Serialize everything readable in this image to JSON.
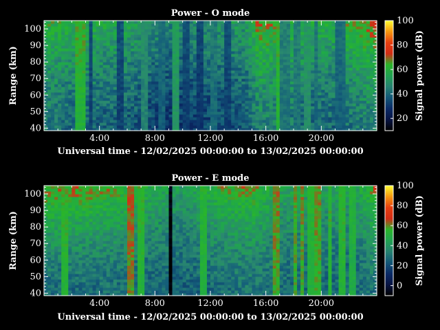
{
  "chart_data": [
    {
      "type": "heatmap",
      "title": "Power - O mode",
      "xlabel": "Universal time - 12/02/2025 00:00:00 to 13/02/2025 00:00:00",
      "ylabel": "Range (km)",
      "x_unit": "hours UT",
      "xlim": [
        0,
        24
      ],
      "ylim": [
        38.5,
        105
      ],
      "x_ticks": [
        "4:00",
        "8:00",
        "12:00",
        "16:00",
        "20:00"
      ],
      "x_tick_values": [
        4,
        8,
        12,
        16,
        20
      ],
      "y_ticks": [
        "40",
        "50",
        "60",
        "70",
        "80",
        "90",
        "100"
      ],
      "y_tick_values": [
        40,
        50,
        60,
        70,
        80,
        90,
        100
      ],
      "colorbar": {
        "label": "Signal power (dB)",
        "range": [
          10,
          100
        ],
        "ticks": [
          "20",
          "40",
          "60",
          "80",
          "100"
        ],
        "tick_values": [
          20,
          40,
          60,
          80,
          100
        ]
      },
      "profile": [
        {
          "t": 0,
          "bottom": 44,
          "top": 60
        },
        {
          "t": 2,
          "bottom": 40,
          "top": 60
        },
        {
          "t": 6,
          "bottom": 38,
          "top": 55
        },
        {
          "t": 9,
          "bottom": 30,
          "top": 48
        },
        {
          "t": 12,
          "bottom": 33,
          "top": 50
        },
        {
          "t": 14.5,
          "bottom": 36,
          "top": 52
        },
        {
          "t": 15.5,
          "bottom": 46,
          "top": 66
        },
        {
          "t": 17,
          "bottom": 45,
          "top": 62
        },
        {
          "t": 19,
          "bottom": 40,
          "top": 58
        },
        {
          "t": 21,
          "bottom": 40,
          "top": 58
        },
        {
          "t": 24,
          "bottom": 46,
          "top": 70
        }
      ],
      "stripes": [
        {
          "t": 2.6,
          "w": 0.35,
          "level": 60
        },
        {
          "t": 3.4,
          "w": 0.2,
          "level": 32
        },
        {
          "t": 5.5,
          "w": 0.3,
          "level": 32
        },
        {
          "t": 7.3,
          "w": 0.3,
          "level": 45
        },
        {
          "t": 8.4,
          "w": 0.25,
          "level": 38
        },
        {
          "t": 9.6,
          "w": 0.3,
          "level": 50
        },
        {
          "t": 10.3,
          "w": 0.25,
          "level": 32
        },
        {
          "t": 11.2,
          "w": 0.25,
          "level": 30
        },
        {
          "t": 12.3,
          "w": 0.3,
          "level": 40
        },
        {
          "t": 13.3,
          "w": 0.2,
          "level": 32
        },
        {
          "t": 16.9,
          "w": 0.2,
          "level": 60
        },
        {
          "t": 17.4,
          "w": 0.35,
          "level": 42
        },
        {
          "t": 18.3,
          "w": 0.25,
          "level": 42
        },
        {
          "t": 18.9,
          "w": 0.25,
          "level": 48
        },
        {
          "t": 19.6,
          "w": 0.2,
          "level": 40
        },
        {
          "t": 21.4,
          "w": 0.3,
          "level": 38
        }
      ]
    },
    {
      "type": "heatmap",
      "title": "Power - E mode",
      "xlabel": "Universal time - 12/02/2025 00:00:00 to 13/02/2025 00:00:00",
      "ylabel": "Range (km)",
      "x_unit": "hours UT",
      "xlim": [
        0,
        24
      ],
      "ylim": [
        38.5,
        105
      ],
      "x_ticks": [
        "4:00",
        "8:00",
        "12:00",
        "16:00",
        "20:00"
      ],
      "x_tick_values": [
        4,
        8,
        12,
        16,
        20
      ],
      "y_ticks": [
        "40",
        "50",
        "60",
        "70",
        "80",
        "90",
        "100"
      ],
      "y_tick_values": [
        40,
        50,
        60,
        70,
        80,
        90,
        100
      ],
      "colorbar": {
        "label": "Signal power (dB)",
        "range": [
          -10,
          100
        ],
        "ticks": [
          "0",
          "20",
          "40",
          "60",
          "80",
          "100"
        ],
        "tick_values": [
          0,
          20,
          40,
          60,
          80,
          100
        ]
      },
      "profile": [
        {
          "t": 0,
          "bottom": 28,
          "top": 58
        },
        {
          "t": 2,
          "bottom": 27,
          "top": 60
        },
        {
          "t": 5,
          "bottom": 28,
          "top": 56
        },
        {
          "t": 8,
          "bottom": 26,
          "top": 48
        },
        {
          "t": 10,
          "bottom": 25,
          "top": 42
        },
        {
          "t": 13,
          "bottom": 28,
          "top": 55
        },
        {
          "t": 15,
          "bottom": 30,
          "top": 58
        },
        {
          "t": 17,
          "bottom": 27,
          "top": 46
        },
        {
          "t": 20,
          "bottom": 26,
          "top": 44
        },
        {
          "t": 22.5,
          "bottom": 26,
          "top": 44
        },
        {
          "t": 24,
          "bottom": 30,
          "top": 60
        }
      ],
      "stripes": [
        {
          "t": 1.5,
          "w": 0.25,
          "level": 52
        },
        {
          "t": 6.3,
          "w": 0.3,
          "level": 58
        },
        {
          "t": 7.1,
          "w": 0.3,
          "level": 52
        },
        {
          "t": 9.1,
          "w": 0.15,
          "level": -10
        },
        {
          "t": 11.6,
          "w": 0.3,
          "level": 50
        },
        {
          "t": 16.8,
          "w": 0.3,
          "level": 56
        },
        {
          "t": 18.1,
          "w": 0.2,
          "level": 55
        },
        {
          "t": 18.6,
          "w": 0.2,
          "level": 55
        },
        {
          "t": 19.2,
          "w": 0.2,
          "level": 50
        },
        {
          "t": 19.8,
          "w": 0.2,
          "level": 55
        },
        {
          "t": 20.6,
          "w": 0.2,
          "level": 52
        },
        {
          "t": 21.5,
          "w": 0.2,
          "level": 52
        },
        {
          "t": 22.3,
          "w": 0.25,
          "level": 48
        }
      ]
    }
  ]
}
